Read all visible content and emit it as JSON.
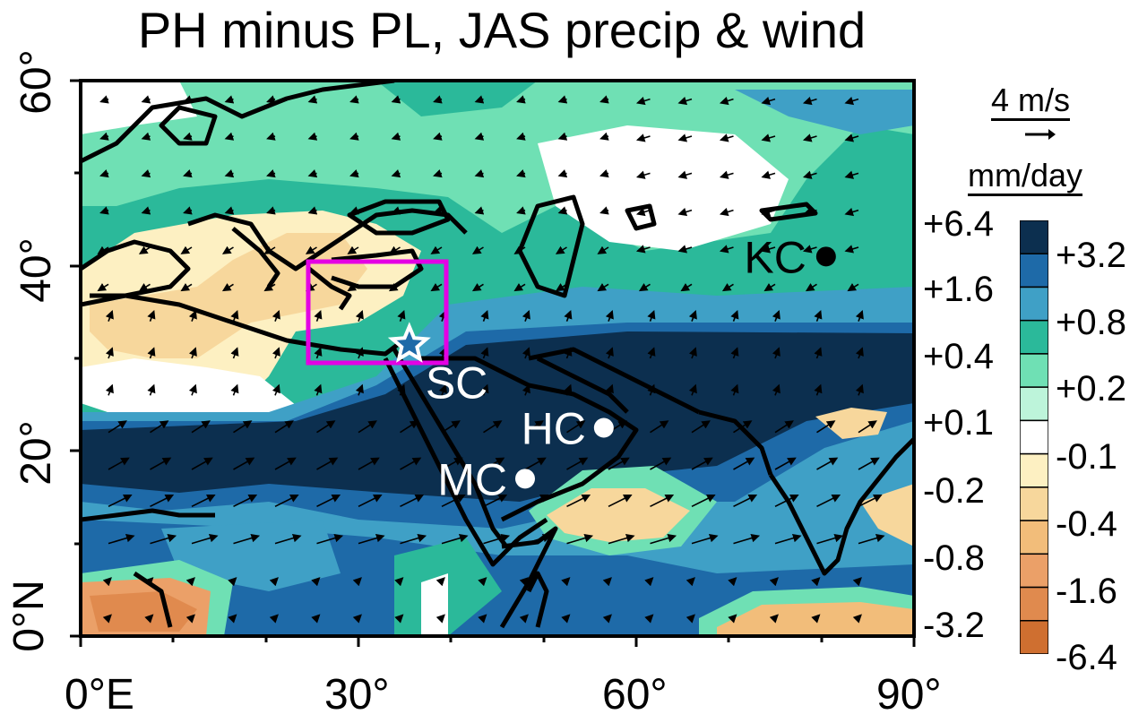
{
  "title": "PH minus PL, JAS precip & wind",
  "axes": {
    "y_ticks": [
      "0°N",
      "20°",
      "40°",
      "60°"
    ],
    "x_ticks": [
      "0°E",
      "30°",
      "60°",
      "90°"
    ]
  },
  "wind_scale": {
    "label": "4 m/s"
  },
  "units": "mm/day",
  "wind_levels": [
    "+6.4",
    "+1.6",
    "+0.4",
    "+0.1",
    "-0.2",
    "-0.8",
    "-3.2"
  ],
  "precip_levels": [
    "+3.2",
    "+0.8",
    "+0.2",
    "-0.1",
    "-0.4",
    "-1.6",
    "-6.4"
  ],
  "colorbar_colors": [
    "#0c2f4f",
    "#1e6aa8",
    "#3fa0c6",
    "#2bb99a",
    "#6fe0b4",
    "#bdf4da",
    "#ffffff",
    "#fdf0c2",
    "#f7d79c",
    "#f2bd7a",
    "#eba068",
    "#e08a4e",
    "#cf6f30"
  ],
  "sites": [
    {
      "label": "SC",
      "lon": 35.5,
      "lat": 31.5,
      "marker": "star"
    },
    {
      "label": "HC",
      "lon": 56.5,
      "lat": 22.5,
      "marker": "white-dot"
    },
    {
      "label": "MC",
      "lon": 48,
      "lat": 17,
      "marker": "white-dot"
    },
    {
      "label": "KC",
      "lon": 80.5,
      "lat": 41,
      "marker": "black-dot"
    }
  ],
  "region_box": {
    "lon": [
      25,
      39
    ],
    "lat": [
      30,
      40.5
    ],
    "color": "#e400e4"
  },
  "map_extent": {
    "lon": [
      0,
      90
    ],
    "lat": [
      0,
      60
    ]
  }
}
